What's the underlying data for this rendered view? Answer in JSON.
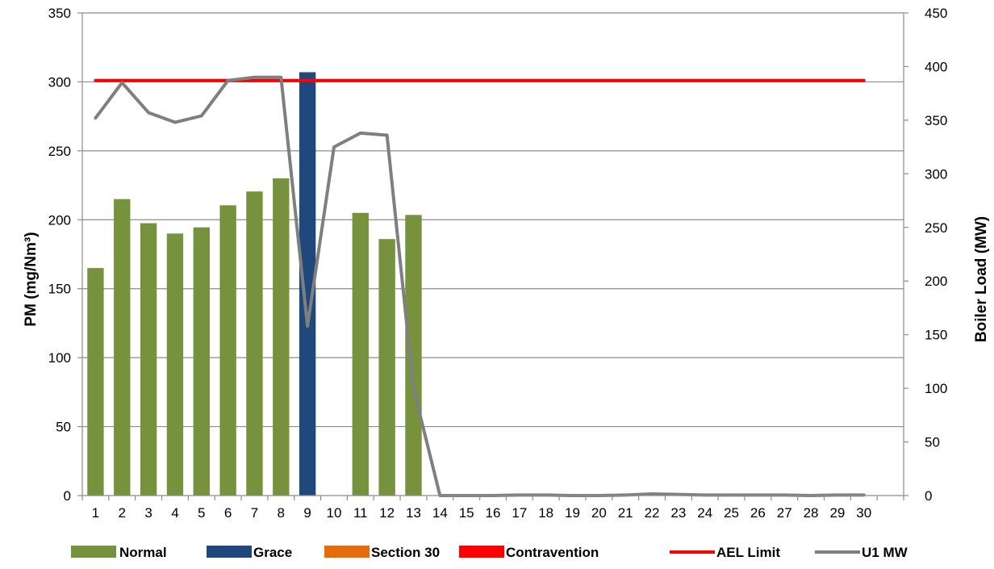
{
  "chart_data": {
    "type": "bar",
    "categories": [
      "1",
      "2",
      "3",
      "4",
      "5",
      "6",
      "7",
      "8",
      "9",
      "10",
      "11",
      "12",
      "13",
      "14",
      "15",
      "16",
      "17",
      "18",
      "19",
      "20",
      "21",
      "22",
      "23",
      "24",
      "25",
      "26",
      "27",
      "28",
      "29",
      "30"
    ],
    "series": [
      {
        "name": "Normal",
        "kind": "bar",
        "axis": "left",
        "color": "#76923c",
        "values": [
          165,
          215,
          197.5,
          190,
          194.5,
          210.5,
          220.5,
          230,
          null,
          null,
          205,
          186,
          203.5,
          null,
          null,
          null,
          null,
          null,
          null,
          null,
          null,
          null,
          null,
          null,
          null,
          null,
          null,
          null,
          null,
          null
        ]
      },
      {
        "name": "Grace",
        "kind": "bar",
        "axis": "left",
        "color": "#1f497d",
        "values": [
          null,
          null,
          null,
          null,
          null,
          null,
          null,
          null,
          307,
          null,
          null,
          null,
          null,
          null,
          null,
          null,
          null,
          null,
          null,
          null,
          null,
          null,
          null,
          null,
          null,
          null,
          null,
          null,
          null,
          null
        ]
      },
      {
        "name": "Section 30",
        "kind": "bar",
        "axis": "left",
        "color": "#e46c0a",
        "values": [
          null,
          null,
          null,
          null,
          null,
          null,
          null,
          null,
          null,
          null,
          null,
          null,
          null,
          null,
          null,
          null,
          null,
          null,
          null,
          null,
          null,
          null,
          null,
          null,
          null,
          null,
          null,
          null,
          null,
          null
        ]
      },
      {
        "name": "Contravention",
        "kind": "bar",
        "axis": "left",
        "color": "#ff0000",
        "values": [
          null,
          null,
          null,
          null,
          null,
          null,
          null,
          null,
          null,
          null,
          null,
          null,
          null,
          null,
          null,
          null,
          null,
          null,
          null,
          null,
          null,
          null,
          null,
          null,
          null,
          null,
          null,
          null,
          null,
          null
        ]
      },
      {
        "name": "AEL Limit",
        "kind": "line",
        "axis": "left",
        "color": "#ff0000",
        "values": [
          301,
          301,
          301,
          301,
          301,
          301,
          301,
          301,
          301,
          301,
          301,
          301,
          301,
          301,
          301,
          301,
          301,
          301,
          301,
          301,
          301,
          301,
          301,
          301,
          301,
          301,
          301,
          301,
          301,
          301
        ]
      },
      {
        "name": "U1 MW",
        "kind": "line",
        "axis": "right",
        "color": "#7f7f7f",
        "values": [
          352,
          385,
          357,
          348,
          354,
          387,
          390,
          390,
          158,
          325,
          338,
          336,
          100,
          0,
          0,
          0,
          0.5,
          0.5,
          0,
          0,
          0.5,
          1.5,
          1,
          0.5,
          0.5,
          0.5,
          0.5,
          0,
          0.5,
          0.5
        ]
      }
    ],
    "ylim": [
      0,
      350
    ],
    "y_ticks": [
      "0",
      "50",
      "100",
      "150",
      "200",
      "250",
      "300",
      "350"
    ],
    "y2lim": [
      0,
      450
    ],
    "y2_ticks": [
      "0",
      "50",
      "100",
      "150",
      "200",
      "250",
      "300",
      "350",
      "400",
      "450"
    ],
    "ylabel": "PM (mg/Nm³)",
    "y2label": "Boiler Load (MW)",
    "grid": true,
    "legend_position": "bottom"
  }
}
